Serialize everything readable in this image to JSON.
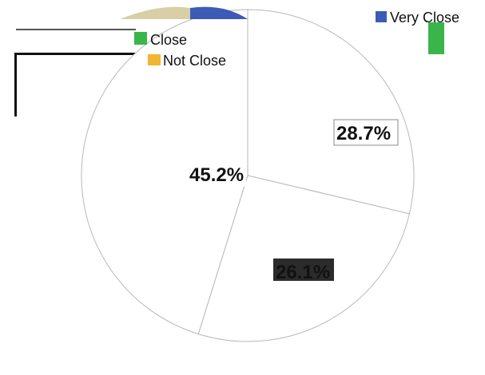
{
  "chart_data": {
    "type": "pie",
    "title": "",
    "categories": [
      "Very Close",
      "Close",
      "Not Close"
    ],
    "values": [
      28.7,
      45.2,
      26.1
    ],
    "labels": [
      "28.7%",
      "45.2%",
      "26.1%"
    ],
    "colors": [
      "#3b5bb5",
      "#3ab54a",
      "#f2b632"
    ],
    "legend": {
      "placement": "top",
      "items": [
        {
          "label": "Very Close",
          "color": "#3b5bb5"
        },
        {
          "label": "Close",
          "color": "#3ab54a"
        },
        {
          "label": "Not Close",
          "color": "#f2b632"
        }
      ]
    },
    "grid": false
  }
}
